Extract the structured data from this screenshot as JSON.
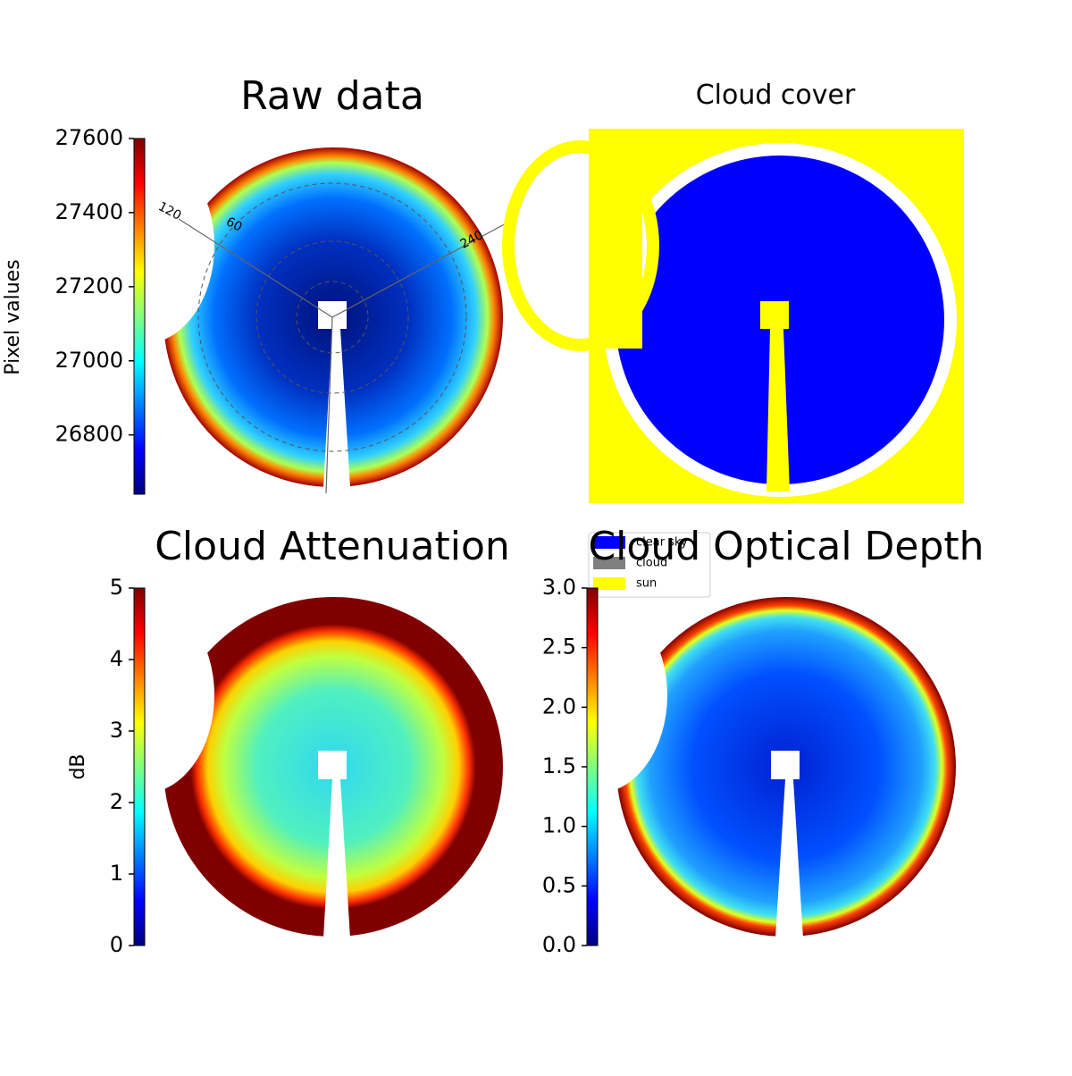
{
  "chart_data": [
    {
      "type": "image",
      "title": "Raw data",
      "colormap": "jet",
      "colorbar": {
        "label": "Pixel values",
        "lim": [
          26640,
          27600
        ],
        "ticks": [
          26800,
          27000,
          27200,
          27400,
          27600
        ]
      },
      "polar_labels": [
        "120",
        "60",
        "240"
      ]
    },
    {
      "type": "image",
      "title": "Cloud cover",
      "legend": [
        {
          "name": "clear sky",
          "color": "#0000ff"
        },
        {
          "name": "cloud",
          "color": "#808080"
        },
        {
          "name": "sun",
          "color": "#ffff00"
        }
      ]
    },
    {
      "type": "image",
      "title": "Cloud Attenuation",
      "colormap": "jet",
      "colorbar": {
        "label": "dB",
        "lim": [
          0,
          5
        ],
        "ticks": [
          0,
          1,
          2,
          3,
          4,
          5
        ]
      }
    },
    {
      "type": "image",
      "title": "Cloud Optical Depth",
      "colormap": "jet",
      "colorbar": {
        "lim": [
          0,
          3
        ],
        "ticks": [
          {
            "value": 0,
            "label": "0.0"
          },
          0.5,
          {
            "value": 1,
            "label": "1.0"
          },
          1.5,
          {
            "value": 2,
            "label": "2.0"
          },
          2.5,
          {
            "value": 3,
            "label": "3.0"
          }
        ]
      }
    }
  ]
}
